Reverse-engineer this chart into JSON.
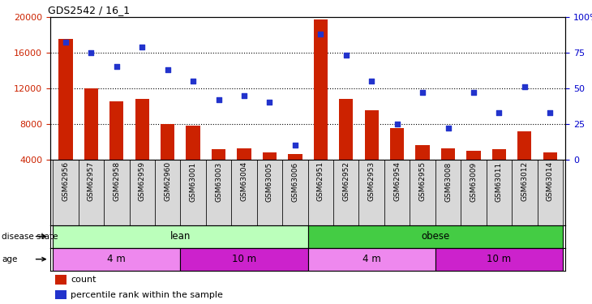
{
  "title": "GDS2542 / 16_1",
  "samples": [
    "GSM62956",
    "GSM62957",
    "GSM62958",
    "GSM62959",
    "GSM62960",
    "GSM63001",
    "GSM63003",
    "GSM63004",
    "GSM63005",
    "GSM63006",
    "GSM62951",
    "GSM62952",
    "GSM62953",
    "GSM62954",
    "GSM62955",
    "GSM63008",
    "GSM63009",
    "GSM63011",
    "GSM63012",
    "GSM63014"
  ],
  "counts": [
    17500,
    12000,
    10500,
    10800,
    8000,
    7800,
    5200,
    5300,
    4800,
    4600,
    19700,
    10800,
    9500,
    7500,
    5600,
    5300,
    5000,
    5200,
    7200,
    4800
  ],
  "percentiles": [
    82,
    75,
    65,
    79,
    63,
    55,
    42,
    45,
    40,
    10,
    88,
    73,
    55,
    25,
    47,
    22,
    47,
    33,
    51,
    33
  ],
  "ylim_left": [
    4000,
    20000
  ],
  "ylim_right": [
    0,
    100
  ],
  "yticks_left": [
    4000,
    8000,
    12000,
    16000,
    20000
  ],
  "yticks_right": [
    0,
    25,
    50,
    75,
    100
  ],
  "bar_color": "#cc2200",
  "dot_color": "#2233cc",
  "disease_state_lean_color": "#bbffbb",
  "disease_state_obese_color": "#44cc44",
  "age_4m_color": "#ee88ee",
  "age_10m_color": "#cc22cc",
  "right_axis_color": "#0000cc",
  "left_axis_color": "#cc2200",
  "legend_count_color": "#cc2200",
  "legend_dot_color": "#2233cc",
  "samples_lean_4m": [
    "GSM62956",
    "GSM62957",
    "GSM62958",
    "GSM62959",
    "GSM62960"
  ],
  "samples_lean_10m": [
    "GSM63001",
    "GSM63003",
    "GSM63004",
    "GSM63005",
    "GSM63006"
  ],
  "samples_obese_4m": [
    "GSM62951",
    "GSM62952",
    "GSM62953",
    "GSM62954",
    "GSM62955"
  ],
  "samples_obese_10m": [
    "GSM63008",
    "GSM63009",
    "GSM63011",
    "GSM63012",
    "GSM63014"
  ]
}
